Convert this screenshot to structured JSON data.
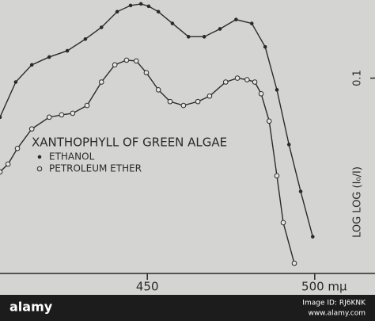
{
  "chart_data": {
    "type": "line",
    "title": "XANTHOPHYLL OF GREEN ALGAE",
    "y_axis_label": "LOG LOG (I₀/I)",
    "xlim": [
      406,
      518
    ],
    "ylim": [
      0,
      0.14
    ],
    "xticks": [
      450,
      {
        "value": 500,
        "label": "500 mμ"
      }
    ],
    "yticks": [
      0.1
    ],
    "series": [
      {
        "name": "ETHANOL",
        "color": "#2a2a2a",
        "marker": "filled",
        "x": [
          406,
          410.7,
          415.5,
          420.7,
          426.1,
          431.5,
          436.3,
          441,
          445,
          448.1,
          450.4,
          453.3,
          457.5,
          462.3,
          467,
          471.7,
          476.5,
          481.2,
          485.2,
          488.7,
          492.3,
          495.8,
          499.4
        ],
        "values": [
          0.08,
          0.098,
          0.1068,
          0.1108,
          0.114,
          0.12,
          0.126,
          0.134,
          0.1372,
          0.138,
          0.1368,
          0.134,
          0.128,
          0.1212,
          0.1212,
          0.1252,
          0.13,
          0.128,
          0.116,
          0.094,
          0.066,
          0.042,
          0.0188
        ]
      },
      {
        "name": "PETROLEUM ETHER",
        "color": "#2a2a2a",
        "marker": "open",
        "x": [
          406,
          408.4,
          411.2,
          415.5,
          420.7,
          424.4,
          427.7,
          432,
          436.3,
          440.3,
          443.8,
          446.7,
          449.7,
          453.3,
          456.8,
          460.8,
          465.1,
          468.6,
          473.4,
          476.9,
          479.8,
          482.1,
          484,
          486.4,
          488.7,
          490.6,
          493.9
        ],
        "values": [
          0.052,
          0.056,
          0.064,
          0.074,
          0.08,
          0.0812,
          0.082,
          0.086,
          0.098,
          0.1068,
          0.1092,
          0.1088,
          0.1028,
          0.094,
          0.088,
          0.086,
          0.088,
          0.0908,
          0.098,
          0.1,
          0.0992,
          0.098,
          0.092,
          0.078,
          0.05,
          0.026,
          0.0052
        ]
      }
    ]
  },
  "watermark": {
    "brand": "alamy",
    "image_id": "Image ID: RJ6KNK",
    "url": "www.alamy.com"
  }
}
